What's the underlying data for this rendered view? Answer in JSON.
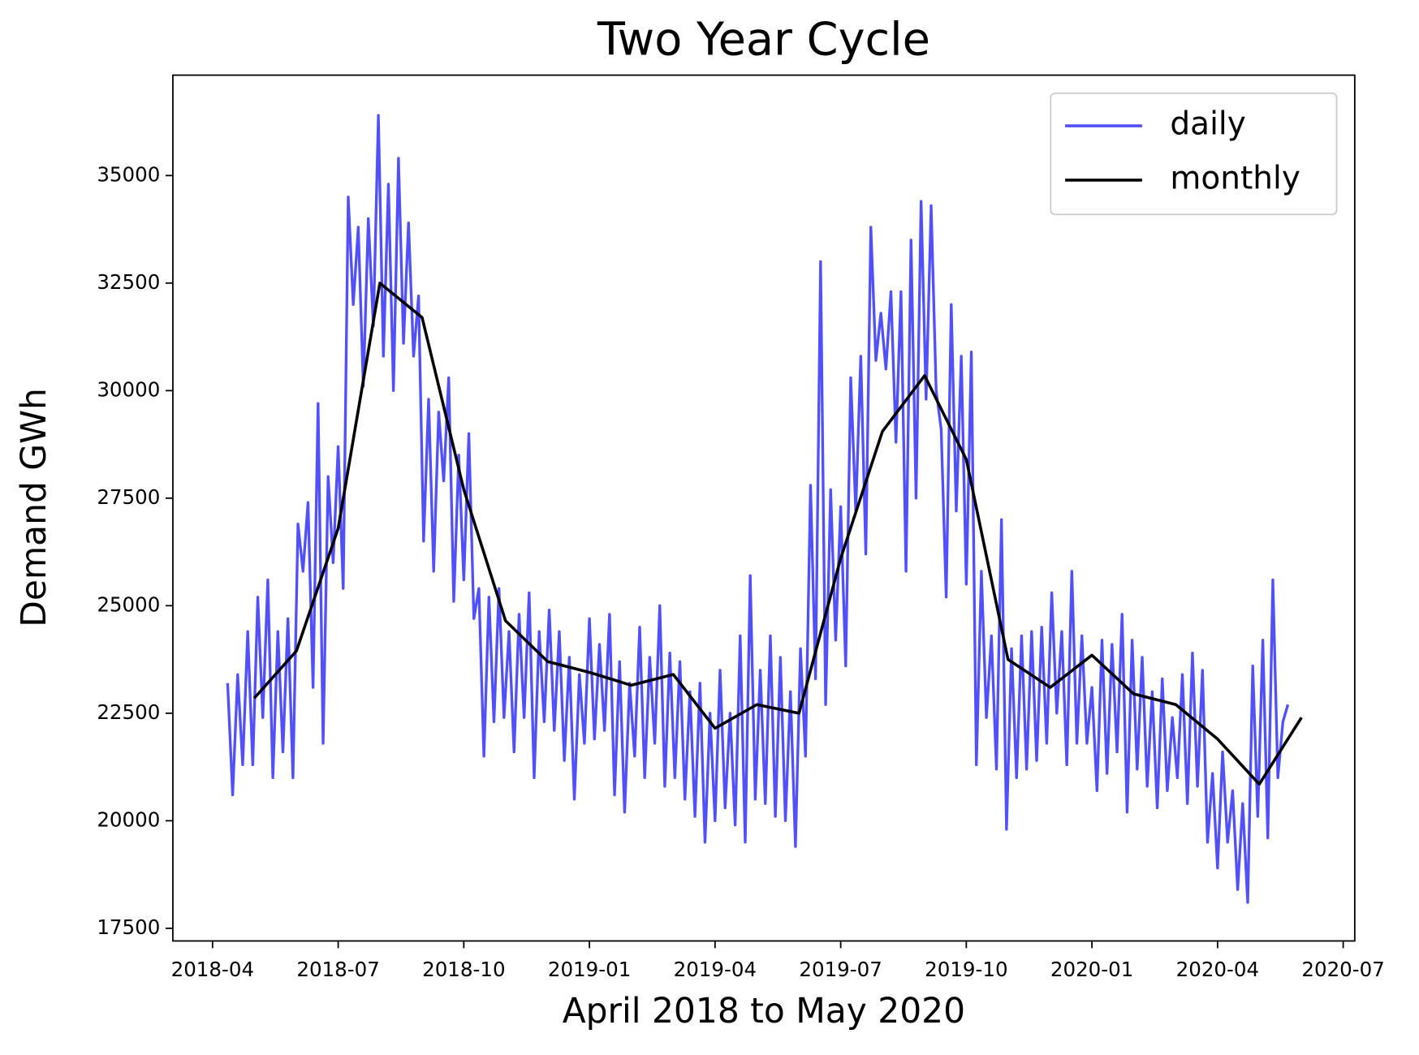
{
  "chart_data": {
    "type": "line",
    "title": "Two Year Cycle",
    "x_label": "April 2018 to May 2020",
    "y_label": "Demand GWh",
    "xlim": [
      2018.171,
      2020.523
    ],
    "xticks": [
      {
        "value": 2018.25,
        "label": "2018-04"
      },
      {
        "value": 2018.5,
        "label": "2018-07"
      },
      {
        "value": 2018.75,
        "label": "2018-10"
      },
      {
        "value": 2019.0,
        "label": "2019-01"
      },
      {
        "value": 2019.25,
        "label": "2019-04"
      },
      {
        "value": 2019.5,
        "label": "2019-07"
      },
      {
        "value": 2019.75,
        "label": "2019-10"
      },
      {
        "value": 2020.0,
        "label": "2020-01"
      },
      {
        "value": 2020.25,
        "label": "2020-04"
      },
      {
        "value": 2020.5,
        "label": "2020-07"
      }
    ],
    "ylim": [
      17206,
      37334
    ],
    "yticks": [
      17500,
      20000,
      22500,
      25000,
      27500,
      30000,
      32500,
      35000
    ],
    "legend": "upper right",
    "series": [
      {
        "name": "daily",
        "color": "#5050ff",
        "x": [
          2018.28,
          2018.29,
          2018.3,
          2018.31,
          2018.32,
          2018.33,
          2018.34,
          2018.35,
          2018.36,
          2018.37,
          2018.38,
          2018.39,
          2018.4,
          2018.41,
          2018.42,
          2018.43,
          2018.44,
          2018.45,
          2018.46,
          2018.47,
          2018.48,
          2018.49,
          2018.5,
          2018.51,
          2018.52,
          2018.53,
          2018.54,
          2018.55,
          2018.56,
          2018.57,
          2018.58,
          2018.59,
          2018.6,
          2018.61,
          2018.62,
          2018.63,
          2018.64,
          2018.65,
          2018.66,
          2018.67,
          2018.68,
          2018.69,
          2018.7,
          2018.71,
          2018.72,
          2018.73,
          2018.74,
          2018.75,
          2018.76,
          2018.77,
          2018.78,
          2018.79,
          2018.8,
          2018.81,
          2018.82,
          2018.83,
          2018.84,
          2018.85,
          2018.86,
          2018.87,
          2018.88,
          2018.89,
          2018.9,
          2018.91,
          2018.92,
          2018.93,
          2018.94,
          2018.95,
          2018.96,
          2018.97,
          2018.98,
          2018.99,
          2019.0,
          2019.01,
          2019.02,
          2019.03,
          2019.04,
          2019.05,
          2019.06,
          2019.07,
          2019.08,
          2019.09,
          2019.1,
          2019.11,
          2019.12,
          2019.13,
          2019.14,
          2019.15,
          2019.16,
          2019.17,
          2019.18,
          2019.19,
          2019.2,
          2019.21,
          2019.22,
          2019.23,
          2019.24,
          2019.25,
          2019.26,
          2019.27,
          2019.28,
          2019.29,
          2019.3,
          2019.31,
          2019.32,
          2019.33,
          2019.34,
          2019.35,
          2019.36,
          2019.37,
          2019.38,
          2019.39,
          2019.4,
          2019.41,
          2019.42,
          2019.43,
          2019.44,
          2019.45,
          2019.46,
          2019.47,
          2019.48,
          2019.49,
          2019.5,
          2019.51,
          2019.52,
          2019.53,
          2019.54,
          2019.55,
          2019.56,
          2019.57,
          2019.58,
          2019.59,
          2019.6,
          2019.61,
          2019.62,
          2019.63,
          2019.64,
          2019.65,
          2019.66,
          2019.67,
          2019.68,
          2019.69,
          2019.7,
          2019.71,
          2019.72,
          2019.73,
          2019.74,
          2019.75,
          2019.76,
          2019.77,
          2019.78,
          2019.79,
          2019.8,
          2019.81,
          2019.82,
          2019.83,
          2019.84,
          2019.85,
          2019.86,
          2019.87,
          2019.88,
          2019.89,
          2019.9,
          2019.91,
          2019.92,
          2019.93,
          2019.94,
          2019.95,
          2019.96,
          2019.97,
          2019.98,
          2019.99,
          2020.0,
          2020.01,
          2020.02,
          2020.03,
          2020.04,
          2020.05,
          2020.06,
          2020.07,
          2020.08,
          2020.09,
          2020.1,
          2020.11,
          2020.12,
          2020.13,
          2020.14,
          2020.15,
          2020.16,
          2020.17,
          2020.18,
          2020.19,
          2020.2,
          2020.21,
          2020.22,
          2020.23,
          2020.24,
          2020.25,
          2020.26,
          2020.27,
          2020.28,
          2020.29,
          2020.3,
          2020.31,
          2020.32,
          2020.33,
          2020.34,
          2020.35,
          2020.36,
          2020.37,
          2020.38,
          2020.39
        ],
        "values": [
          23200,
          20600,
          23400,
          21300,
          24400,
          21300,
          25200,
          22400,
          25600,
          21000,
          24400,
          21600,
          24700,
          21000,
          26900,
          25800,
          27400,
          23100,
          29700,
          21800,
          28000,
          26000,
          28700,
          25400,
          34500,
          32000,
          33800,
          30100,
          34000,
          31500,
          36400,
          30800,
          34800,
          30000,
          35400,
          31100,
          33900,
          30800,
          32200,
          26500,
          29800,
          25800,
          29500,
          27900,
          30300,
          25100,
          28500,
          25600,
          29000,
          24700,
          25400,
          21500,
          25200,
          22300,
          25400,
          22400,
          24400,
          21600,
          24800,
          22400,
          25300,
          21000,
          24400,
          22300,
          24900,
          22100,
          24400,
          21400,
          23800,
          20500,
          23400,
          21800,
          24700,
          21900,
          24100,
          22100,
          24800,
          20600,
          23700,
          20200,
          23200,
          21500,
          24500,
          21000,
          23800,
          21800,
          25000,
          20800,
          23900,
          21000,
          23700,
          20500,
          23000,
          20100,
          23200,
          19500,
          22500,
          20000,
          23500,
          20300,
          22500,
          19900,
          24300,
          19500,
          25700,
          20500,
          23500,
          20400,
          24300,
          20100,
          23800,
          20000,
          23000,
          19400,
          24000,
          21500,
          27800,
          23300,
          33000,
          22700,
          27700,
          24200,
          27300,
          23600,
          30300,
          27200,
          30800,
          26200,
          33800,
          30700,
          31800,
          30500,
          32300,
          28800,
          32300,
          25800,
          33500,
          27500,
          34400,
          29800,
          34300,
          30000,
          29100,
          25200,
          32000,
          27200,
          30800,
          25500,
          30900,
          21300,
          25800,
          22400,
          24300,
          21200,
          27000,
          19800,
          24000,
          21000,
          24300,
          21200,
          24400,
          21400,
          24500,
          21800,
          25300,
          22500,
          24400,
          21300,
          25800,
          21800,
          24300,
          21800,
          23100,
          20700,
          24200,
          21100,
          24100,
          21600,
          24800,
          20200,
          24200,
          21200,
          23800,
          20800,
          23000,
          20300,
          23300,
          20700,
          22400,
          21000,
          23400,
          20400,
          23900,
          20800,
          23500,
          19500,
          21100,
          18900,
          21600,
          19500,
          20700,
          18400,
          20400,
          18100,
          23600,
          20100,
          24200,
          19600,
          25600,
          21000,
          22300,
          22700
        ]
      },
      {
        "name": "monthly",
        "color": "#000000",
        "x": [
          2018.333,
          2018.417,
          2018.5,
          2018.583,
          2018.667,
          2018.75,
          2018.833,
          2018.917,
          2019.0,
          2019.083,
          2019.167,
          2019.25,
          2019.333,
          2019.417,
          2019.5,
          2019.583,
          2019.667,
          2019.75,
          2019.833,
          2019.917,
          2020.0,
          2020.083,
          2020.167,
          2020.25,
          2020.333,
          2020.417
        ],
        "values": [
          22850,
          23950,
          26800,
          32500,
          31700,
          27700,
          24650,
          23700,
          23450,
          23150,
          23400,
          22150,
          22700,
          22500,
          26100,
          29050,
          30350,
          28400,
          23750,
          23100,
          23850,
          22950,
          22700,
          21900,
          20850,
          22400
        ]
      }
    ]
  }
}
